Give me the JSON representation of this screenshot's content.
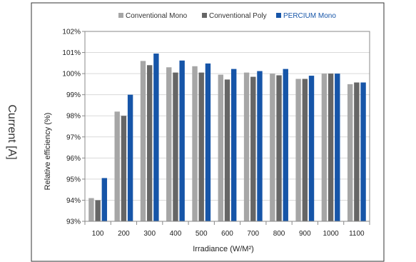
{
  "outer_label": "Current [A]",
  "chart_data": {
    "type": "bar",
    "title": "",
    "xlabel": "Irradiance (W/M²)",
    "ylabel": "Relative efficiency (%)",
    "ylim": [
      93,
      102
    ],
    "y_ticks": [
      "93%",
      "94%",
      "95%",
      "96%",
      "97%",
      "98%",
      "99%",
      "100%",
      "101%",
      "102%"
    ],
    "grid": true,
    "legend_placement": "top",
    "categories": [
      "100",
      "200",
      "300",
      "400",
      "500",
      "600",
      "700",
      "800",
      "900",
      "1000",
      "1100"
    ],
    "series": [
      {
        "name": "Conventional Mono",
        "color": "#a6a6a6",
        "values": [
          94.1,
          98.2,
          100.6,
          100.3,
          100.35,
          99.95,
          100.05,
          100.0,
          99.75,
          100.0,
          99.5
        ]
      },
      {
        "name": "Conventional Poly",
        "color": "#666666",
        "values": [
          94.0,
          98.0,
          100.4,
          100.05,
          100.05,
          99.72,
          99.85,
          99.92,
          99.75,
          100.0,
          99.58
        ]
      },
      {
        "name": "PERCIUM Mono",
        "color": "#1655a8",
        "values": [
          95.05,
          99.0,
          100.95,
          100.62,
          100.48,
          100.22,
          100.12,
          100.22,
          99.9,
          100.0,
          99.58
        ]
      }
    ]
  }
}
